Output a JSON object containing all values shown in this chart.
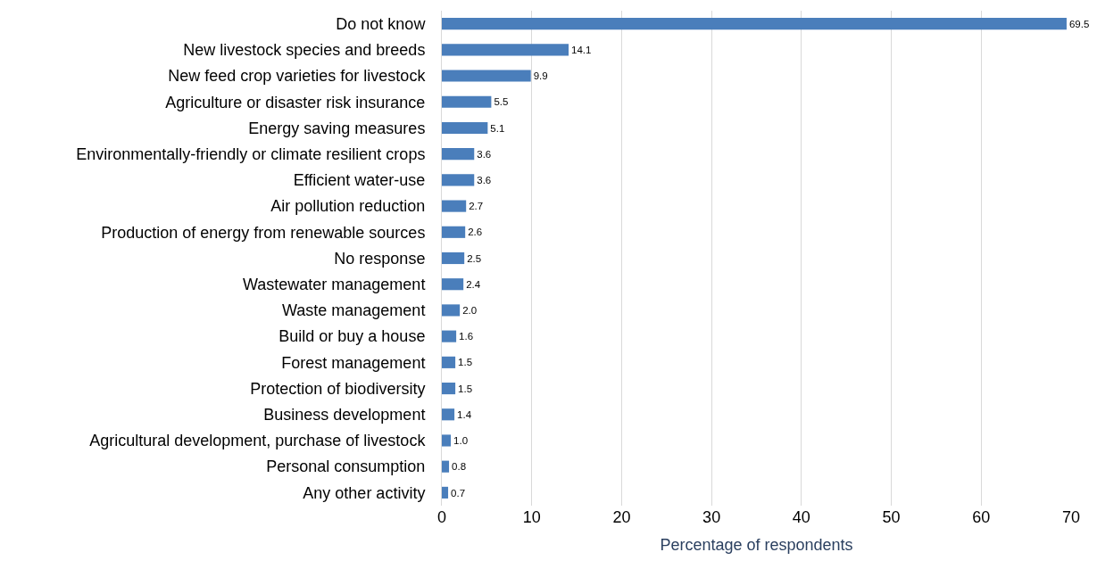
{
  "chart_data": {
    "type": "bar",
    "orientation": "horizontal",
    "xlabel": "Percentage of respondents",
    "categories": [
      "Do not know",
      "New livestock species and breeds",
      "New feed crop varieties for livestock",
      "Agriculture or disaster risk insurance",
      "Energy saving measures",
      "Environmentally-friendly or climate resilient crops",
      "Efficient water-use",
      "Air pollution reduction",
      "Production of energy from renewable sources",
      "No response",
      "Wastewater management",
      "Waste management",
      "Build or buy a house",
      "Forest management",
      "Protection of biodiversity",
      "Business development",
      "Agricultural development, purchase of livestock",
      "Personal consumption",
      "Any other activity"
    ],
    "values": [
      69.5,
      14.1,
      9.9,
      5.5,
      5.1,
      3.6,
      3.6,
      2.7,
      2.6,
      2.5,
      2.4,
      2.0,
      1.6,
      1.5,
      1.5,
      1.4,
      1.0,
      0.8,
      0.7
    ],
    "value_labels": [
      "69.5",
      "14.1",
      "9.9",
      "5.5",
      "5.1",
      "3.6",
      "3.6",
      "2.7",
      "2.6",
      "2.5",
      "2.4",
      "2.0",
      "1.6",
      "1.5",
      "1.5",
      "1.4",
      "1.0",
      "0.8",
      "0.7"
    ],
    "color": "#4a7ebb",
    "xlim": [
      0,
      70
    ],
    "xticks": [
      0,
      10,
      20,
      30,
      40,
      50,
      60,
      70
    ],
    "grid": "x",
    "legend": false
  }
}
